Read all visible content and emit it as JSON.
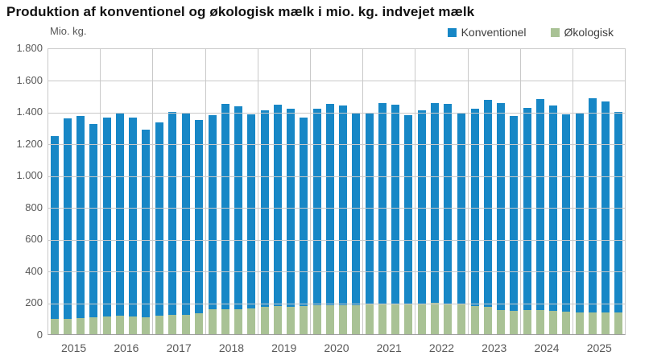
{
  "title": "Produktion af konventionel og økologisk mælk i mio. kg. indvejet mælk",
  "y_axis_unit": "Mio. kg.",
  "legend": {
    "items": [
      {
        "label": "Konventionel",
        "color": "#1787c6"
      },
      {
        "label": "Økologisk",
        "color": "#a9c295"
      }
    ]
  },
  "colors": {
    "konventionel": "#1787c6",
    "okologisk": "#a9c295",
    "gridline": "#c9c9c9",
    "axis_text": "#595959",
    "title_text": "#111111"
  },
  "y_ticks": [
    "1.800",
    "1.600",
    "1.400",
    "1.200",
    "1.000",
    "800",
    "600",
    "400",
    "200",
    "0"
  ],
  "chart_data": {
    "type": "bar",
    "stacked": true,
    "title": "Produktion af konventionel og økologisk mælk i mio. kg. indvejet mælk",
    "ylabel": "Mio. kg.",
    "xlabel": "",
    "ylim": [
      0,
      1800
    ],
    "grid": true,
    "legend_position": "top-right",
    "unit": "mio. kg",
    "bars_per_category": 4,
    "categories": [
      "2015",
      "2016",
      "2017",
      "2018",
      "2019",
      "2020",
      "2021",
      "2022",
      "2023",
      "2024",
      "2025"
    ],
    "series": [
      {
        "name": "Konventionel",
        "color": "#1787c6",
        "values": [
          1148,
          1255,
          1270,
          1217,
          1246,
          1276,
          1246,
          1174,
          1215,
          1273,
          1261,
          1211,
          1218,
          1289,
          1271,
          1215,
          1236,
          1267,
          1246,
          1186,
          1237,
          1262,
          1256,
          1200,
          1200,
          1258,
          1254,
          1188,
          1213,
          1253,
          1258,
          1198,
          1238,
          1297,
          1299,
          1225,
          1270,
          1324,
          1292,
          1234,
          1253,
          1342,
          1324,
          1258
        ]
      },
      {
        "name": "Økologisk",
        "color": "#a9c295",
        "values": [
          95,
          98,
          101,
          105,
          112,
          116,
          112,
          108,
          116,
          121,
          122,
          132,
          155,
          159,
          158,
          163,
          171,
          175,
          171,
          175,
          180,
          183,
          180,
          183,
          188,
          191,
          188,
          188,
          193,
          196,
          188,
          185,
          179,
          174,
          152,
          145,
          150,
          151,
          145,
          144,
          139,
          139,
          136,
          136
        ]
      }
    ]
  }
}
